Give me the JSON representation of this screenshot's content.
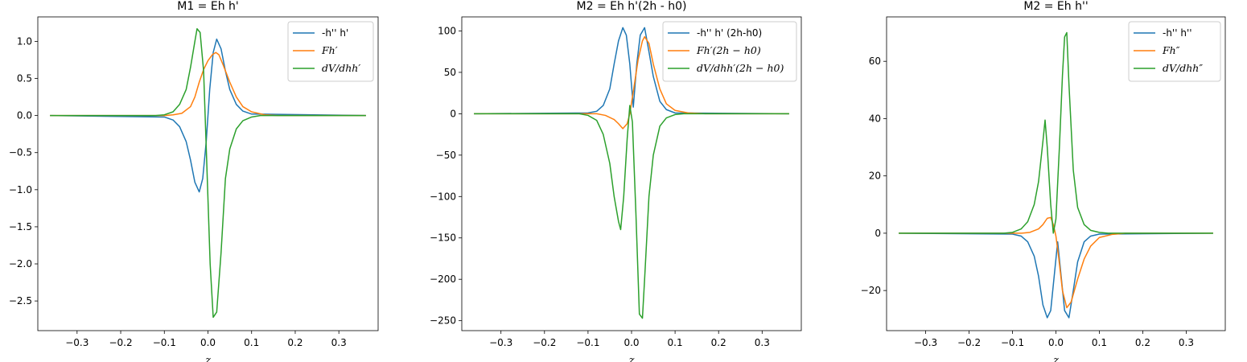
{
  "colors": {
    "blue": "#1f77b4",
    "orange": "#ff7f0e",
    "green": "#2ca02c"
  },
  "chart_data": [
    {
      "type": "line",
      "title": "M1 = Eh h'",
      "xlabel": "z",
      "ylabel": "",
      "xlim": [
        -0.39,
        0.39
      ],
      "ylim": [
        -2.9,
        1.33
      ],
      "xticks": [
        -0.3,
        -0.2,
        -0.1,
        0.0,
        0.1,
        0.2,
        0.3
      ],
      "xtick_labels": [
        "−0.3",
        "−0.2",
        "−0.1",
        "0.0",
        "0.1",
        "0.2",
        "0.3"
      ],
      "yticks": [
        1.0,
        0.5,
        0.0,
        -0.5,
        -1.0,
        -1.5,
        -2.0,
        -2.5
      ],
      "ytick_labels": [
        "1.0",
        "0.5",
        "0.0",
        "−0.5",
        "−1.0",
        "−1.5",
        "−2.0",
        "−2.5"
      ],
      "legend_position": "upper right",
      "series": [
        {
          "name": "-h'' h'",
          "color": "#1f77b4",
          "x": [
            -0.362,
            -0.1,
            -0.08,
            -0.065,
            -0.05,
            -0.04,
            -0.03,
            -0.02,
            -0.012,
            -0.004,
            0.004,
            0.012,
            0.02,
            0.03,
            0.04,
            0.05,
            0.065,
            0.08,
            0.1,
            0.362
          ],
          "y": [
            0,
            -0.02,
            -0.06,
            -0.15,
            -0.35,
            -0.6,
            -0.9,
            -1.03,
            -0.85,
            -0.35,
            0.35,
            0.85,
            1.03,
            0.9,
            0.6,
            0.35,
            0.15,
            0.06,
            0.02,
            0
          ]
        },
        {
          "name": "Fh′",
          "color": "#ff7f0e",
          "x": [
            -0.362,
            -0.1,
            -0.08,
            -0.06,
            -0.04,
            -0.03,
            -0.02,
            -0.01,
            0.0,
            0.01,
            0.018,
            0.025,
            0.035,
            0.05,
            0.065,
            0.08,
            0.1,
            0.13,
            0.16,
            0.362
          ],
          "y": [
            0,
            0.0,
            0.01,
            0.03,
            0.12,
            0.25,
            0.45,
            0.62,
            0.74,
            0.82,
            0.85,
            0.82,
            0.68,
            0.45,
            0.25,
            0.12,
            0.05,
            0.01,
            0.0,
            0
          ]
        },
        {
          "name": "dV/dhh′",
          "color": "#2ca02c",
          "x": [
            -0.362,
            -0.12,
            -0.1,
            -0.08,
            -0.065,
            -0.05,
            -0.04,
            -0.03,
            -0.025,
            -0.018,
            -0.01,
            -0.003,
            0.005,
            0.012,
            0.02,
            0.03,
            0.04,
            0.05,
            0.065,
            0.08,
            0.1,
            0.12,
            0.362
          ],
          "y": [
            0,
            0.0,
            0.01,
            0.05,
            0.15,
            0.35,
            0.65,
            1.0,
            1.17,
            1.12,
            0.6,
            -0.6,
            -2.0,
            -2.72,
            -2.65,
            -1.85,
            -0.85,
            -0.45,
            -0.18,
            -0.07,
            -0.02,
            0.0,
            0
          ]
        }
      ]
    },
    {
      "type": "line",
      "title": "M2 = Eh h'(2h - h0)",
      "xlabel": "z",
      "ylabel": "",
      "xlim": [
        -0.39,
        0.39
      ],
      "ylim": [
        -262,
        117
      ],
      "xticks": [
        -0.3,
        -0.2,
        -0.1,
        0.0,
        0.1,
        0.2,
        0.3
      ],
      "xtick_labels": [
        "−0.3",
        "−0.2",
        "−0.1",
        "0.0",
        "0.1",
        "0.2",
        "0.3"
      ],
      "yticks": [
        100,
        50,
        0,
        -50,
        -100,
        -150,
        -200,
        -250
      ],
      "ytick_labels": [
        "100",
        "50",
        "0",
        "−50",
        "−100",
        "−150",
        "−200",
        "−250"
      ],
      "legend_position": "upper right",
      "series": [
        {
          "name": "-h'' h' (2h-h0)",
          "color": "#1f77b4",
          "x": [
            -0.362,
            -0.1,
            -0.08,
            -0.065,
            -0.05,
            -0.04,
            -0.03,
            -0.02,
            -0.012,
            -0.004,
            0.004,
            0.012,
            0.02,
            0.03,
            0.04,
            0.05,
            0.065,
            0.08,
            0.1,
            0.362
          ],
          "y": [
            0,
            1,
            3,
            10,
            30,
            60,
            88,
            104,
            95,
            60,
            8,
            60,
            95,
            104,
            75,
            45,
            15,
            5,
            1,
            0
          ]
        },
        {
          "name": "Fh′(2h − h0)",
          "color": "#ff7f0e",
          "x": [
            -0.362,
            -0.08,
            -0.06,
            -0.04,
            -0.03,
            -0.02,
            -0.01,
            -0.004,
            0.005,
            0.015,
            0.025,
            0.03,
            0.04,
            0.05,
            0.065,
            0.08,
            0.1,
            0.13,
            0.17,
            0.362
          ],
          "y": [
            0,
            0,
            -2,
            -7,
            -12,
            -18,
            -12,
            0,
            30,
            65,
            88,
            93,
            85,
            60,
            30,
            12,
            4,
            1,
            0,
            0
          ]
        },
        {
          "name": "dV/dhh′(2h − h0)",
          "color": "#2ca02c",
          "x": [
            -0.362,
            -0.12,
            -0.1,
            -0.08,
            -0.065,
            -0.05,
            -0.04,
            -0.03,
            -0.025,
            -0.018,
            -0.01,
            -0.004,
            0.002,
            0.01,
            0.018,
            0.025,
            0.03,
            0.04,
            0.05,
            0.065,
            0.08,
            0.1,
            0.12,
            0.362
          ],
          "y": [
            0,
            0,
            -2,
            -8,
            -25,
            -60,
            -100,
            -130,
            -140,
            -100,
            -30,
            10,
            -10,
            -120,
            -242,
            -247,
            -200,
            -100,
            -50,
            -15,
            -5,
            -1,
            0,
            0
          ]
        }
      ]
    },
    {
      "type": "line",
      "title": "M2 = Eh h''",
      "xlabel": "z",
      "ylabel": "",
      "xlim": [
        -0.39,
        0.39
      ],
      "ylim": [
        -34,
        75.5
      ],
      "xticks": [
        -0.3,
        -0.2,
        -0.1,
        0.0,
        0.1,
        0.2,
        0.3
      ],
      "xtick_labels": [
        "−0.3",
        "−0.2",
        "−0.1",
        "0.0",
        "0.1",
        "0.2",
        "0.3"
      ],
      "yticks": [
        60,
        40,
        20,
        0,
        -20
      ],
      "ytick_labels": [
        "60",
        "40",
        "20",
        "0",
        "−20"
      ],
      "legend_position": "upper right",
      "series": [
        {
          "name": "-h'' h''",
          "color": "#1f77b4",
          "x": [
            -0.362,
            -0.1,
            -0.08,
            -0.065,
            -0.05,
            -0.04,
            -0.03,
            -0.02,
            -0.012,
            -0.004,
            0.004,
            0.012,
            0.02,
            0.03,
            0.04,
            0.05,
            0.065,
            0.08,
            0.1,
            0.362
          ],
          "y": [
            0,
            -0.3,
            -1,
            -3,
            -8,
            -15,
            -25,
            -29.5,
            -27,
            -15,
            -3,
            -15,
            -27,
            -29.5,
            -20,
            -10,
            -3,
            -1,
            -0.3,
            0
          ]
        },
        {
          "name": "Fh″",
          "color": "#ff7f0e",
          "x": [
            -0.362,
            -0.08,
            -0.06,
            -0.04,
            -0.03,
            -0.02,
            -0.012,
            -0.006,
            0.0,
            0.006,
            0.015,
            0.025,
            0.035,
            0.05,
            0.065,
            0.08,
            0.1,
            0.13,
            0.16,
            0.362
          ],
          "y": [
            0,
            0,
            0.3,
            1.5,
            3,
            5.2,
            5.5,
            3,
            -1,
            -8,
            -20,
            -26,
            -24,
            -16,
            -9,
            -4.5,
            -1.5,
            -0.4,
            0,
            0
          ]
        },
        {
          "name": "dV/dhh″",
          "color": "#2ca02c",
          "x": [
            -0.362,
            -0.12,
            -0.1,
            -0.08,
            -0.065,
            -0.05,
            -0.04,
            -0.03,
            -0.025,
            -0.02,
            -0.012,
            -0.006,
            0.0,
            0.008,
            0.015,
            0.02,
            0.025,
            0.03,
            0.04,
            0.05,
            0.065,
            0.08,
            0.1,
            0.12,
            0.362
          ],
          "y": [
            0,
            0,
            0.3,
            1.5,
            4,
            10,
            18,
            32,
            39.5,
            30,
            10,
            0,
            5,
            30,
            55,
            68.5,
            70,
            52,
            22,
            9,
            3,
            1,
            0.3,
            0,
            0
          ]
        }
      ]
    }
  ]
}
